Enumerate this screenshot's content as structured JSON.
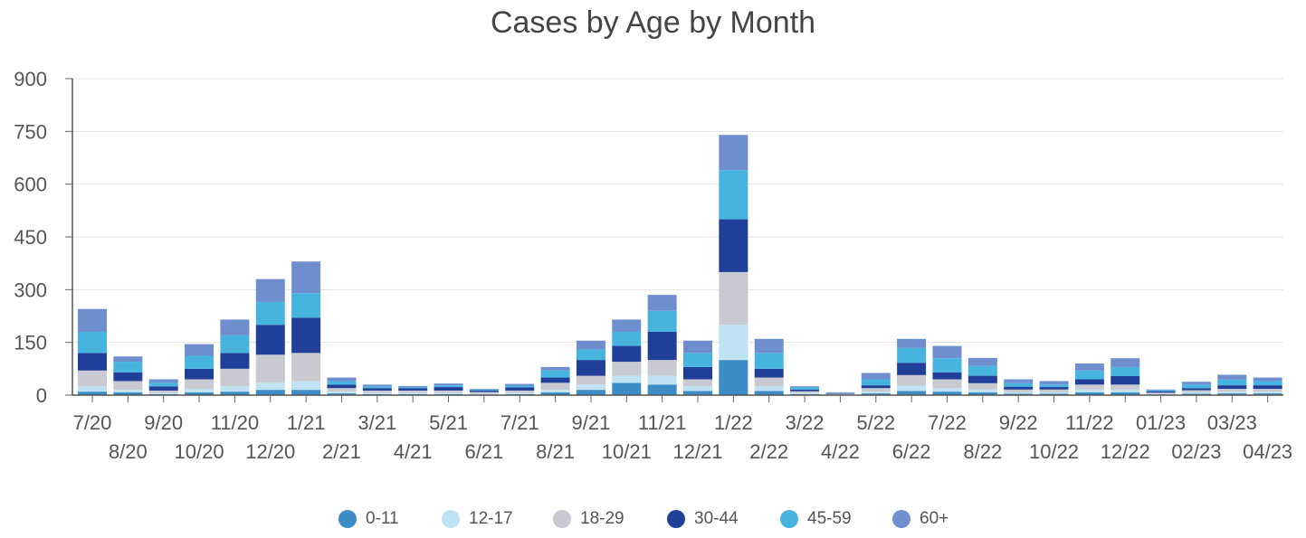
{
  "chart_data": {
    "type": "bar",
    "stacked": true,
    "title": "Cases by Age by Month",
    "xlabel": "",
    "ylabel": "",
    "ylim": [
      0,
      900
    ],
    "yticks": [
      0,
      150,
      300,
      450,
      600,
      750,
      900
    ],
    "grid": true,
    "legend_position": "bottom",
    "categories": [
      "7/20",
      "8/20",
      "9/20",
      "10/20",
      "11/20",
      "12/20",
      "1/21",
      "2/21",
      "3/21",
      "4/21",
      "5/21",
      "6/21",
      "7/21",
      "8/21",
      "9/21",
      "10/21",
      "11/21",
      "12/21",
      "1/22",
      "2/22",
      "3/22",
      "4/22",
      "5/22",
      "6/22",
      "7/22",
      "8/22",
      "9/22",
      "10/22",
      "11/22",
      "12/22",
      "01/23",
      "02/23",
      "03/23",
      "04/23"
    ],
    "series": [
      {
        "name": "0-11",
        "color": "#3c8dc5",
        "values": [
          10,
          8,
          3,
          8,
          10,
          15,
          15,
          5,
          3,
          3,
          3,
          2,
          3,
          8,
          15,
          35,
          30,
          12,
          100,
          12,
          3,
          1,
          5,
          12,
          10,
          8,
          4,
          4,
          8,
          8,
          2,
          4,
          5,
          5
        ]
      },
      {
        "name": "12-17",
        "color": "#bfe3f3",
        "values": [
          15,
          7,
          3,
          10,
          15,
          20,
          25,
          5,
          3,
          3,
          3,
          2,
          3,
          7,
          15,
          20,
          25,
          13,
          100,
          13,
          3,
          1,
          5,
          15,
          10,
          8,
          4,
          4,
          8,
          8,
          2,
          4,
          5,
          5
        ]
      },
      {
        "name": "18-29",
        "color": "#c8c9d1",
        "values": [
          45,
          25,
          7,
          27,
          50,
          80,
          80,
          10,
          7,
          7,
          7,
          5,
          7,
          20,
          25,
          40,
          45,
          20,
          150,
          25,
          5,
          2,
          10,
          30,
          25,
          18,
          8,
          8,
          14,
          14,
          3,
          6,
          8,
          8
        ]
      },
      {
        "name": "30-44",
        "color": "#203f99",
        "values": [
          50,
          25,
          12,
          30,
          45,
          85,
          100,
          10,
          7,
          7,
          10,
          4,
          9,
          15,
          45,
          45,
          80,
          35,
          150,
          25,
          5,
          2,
          8,
          35,
          20,
          21,
          8,
          7,
          15,
          24,
          4,
          6,
          10,
          10
        ]
      },
      {
        "name": "45-59",
        "color": "#47b4df",
        "values": [
          60,
          30,
          10,
          37,
          50,
          65,
          70,
          10,
          5,
          3,
          5,
          3,
          5,
          20,
          30,
          40,
          60,
          40,
          140,
          45,
          6,
          1,
          17,
          42,
          40,
          28,
          10,
          7,
          25,
          26,
          3,
          10,
          16,
          12
        ]
      },
      {
        "name": "60+",
        "color": "#6f8ece",
        "values": [
          65,
          15,
          10,
          33,
          45,
          65,
          90,
          10,
          5,
          3,
          5,
          2,
          5,
          10,
          25,
          35,
          45,
          35,
          100,
          40,
          3,
          1,
          18,
          26,
          35,
          23,
          11,
          10,
          20,
          25,
          2,
          8,
          14,
          10
        ]
      }
    ]
  }
}
